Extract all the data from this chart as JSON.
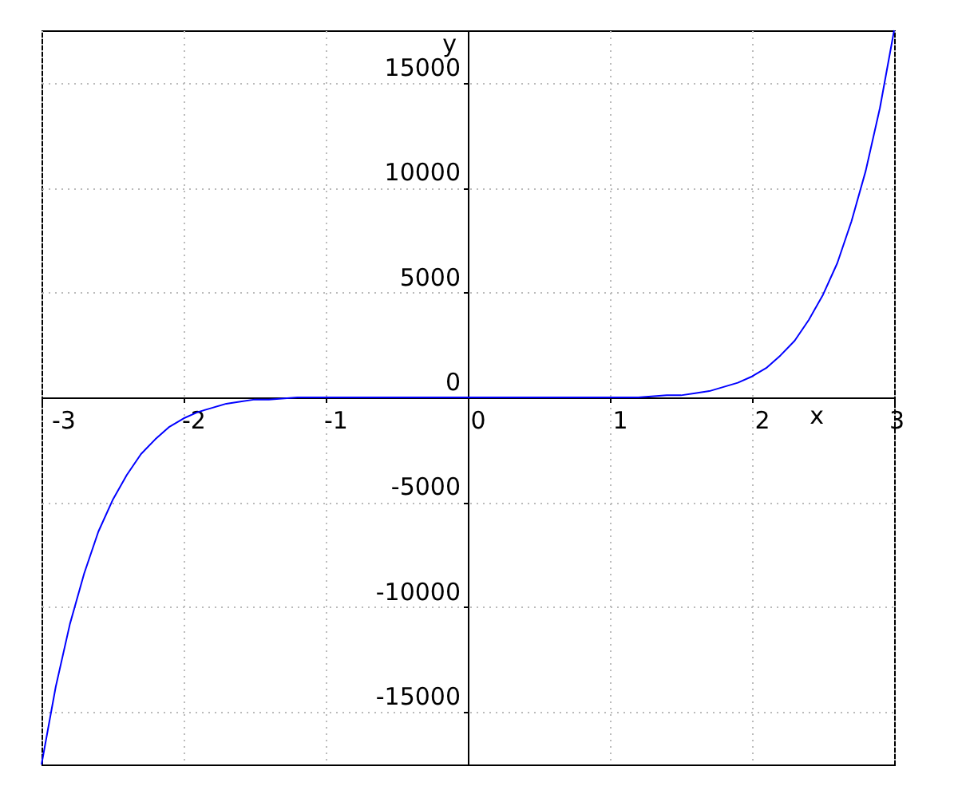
{
  "chart_data": {
    "type": "line",
    "xlabel": "x",
    "ylabel": "y",
    "xlim": [
      -3,
      3
    ],
    "ylim": [
      -17500,
      17500
    ],
    "xticks": [
      -3,
      -2,
      -1,
      0,
      1,
      2,
      3
    ],
    "yticks": [
      -15000,
      -10000,
      -5000,
      0,
      5000,
      10000,
      15000
    ],
    "grid": true,
    "line_style": "solid",
    "series": [
      {
        "color": "#0000ff",
        "x": [
          -3,
          -2.9,
          -2.8,
          -2.7,
          -2.6,
          -2.5,
          -2.4,
          -2.3,
          -2.2,
          -2.1,
          -2,
          -1.9,
          -1.8,
          -1.7,
          -1.6,
          -1.5,
          -1.4,
          -1.2,
          -1,
          -0.5,
          0,
          0.5,
          1,
          1.2,
          1.4,
          1.5,
          1.6,
          1.7,
          1.8,
          1.9,
          2,
          2.1,
          2.2,
          2.3,
          2.4,
          2.5,
          2.6,
          2.7,
          2.8,
          2.9,
          3
        ],
        "values": [
          -17500,
          -13800,
          -10800,
          -8400,
          -6400,
          -4900,
          -3700,
          -2700,
          -2000,
          -1400,
          -1000,
          -700,
          -500,
          -300,
          -200,
          -100,
          -100,
          0,
          0,
          0,
          0,
          0,
          0,
          0,
          100,
          100,
          200,
          300,
          500,
          700,
          1000,
          1400,
          2000,
          2700,
          3700,
          4900,
          6400,
          8400,
          10800,
          13800,
          17500
        ]
      }
    ]
  }
}
